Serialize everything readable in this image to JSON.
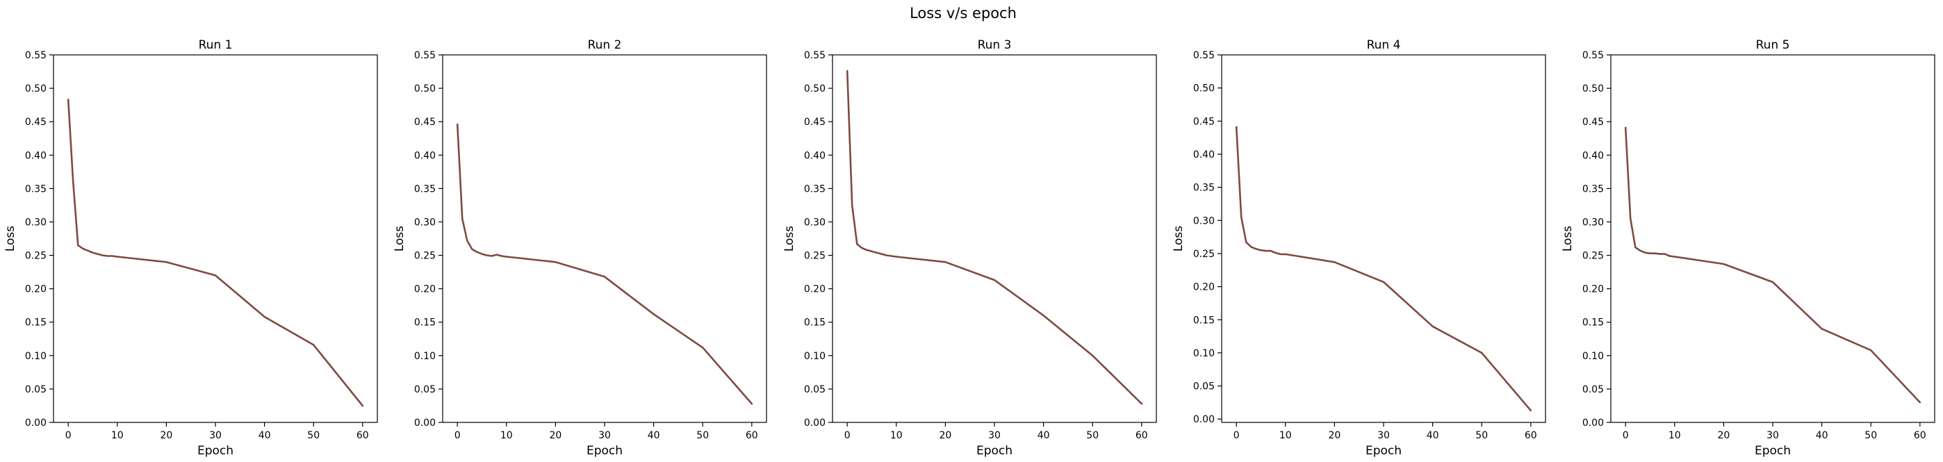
{
  "figure": {
    "suptitle": "Loss v/s epoch",
    "line_color": "#7f4a40"
  },
  "chart_data": [
    {
      "type": "line",
      "title": "Run 1",
      "xlabel": "Epoch",
      "ylabel": "Loss",
      "xlim": [
        -3,
        63
      ],
      "ylim": [
        0.0,
        0.55
      ],
      "x_ticks": [
        0,
        10,
        20,
        30,
        40,
        50,
        60
      ],
      "y_ticks": [
        0.0,
        0.05,
        0.1,
        0.15,
        0.2,
        0.25,
        0.3,
        0.35,
        0.4,
        0.45,
        0.5,
        0.55
      ],
      "grid": false,
      "x": [
        0,
        1,
        2,
        3,
        4,
        5,
        6,
        7,
        8,
        9,
        10,
        20,
        30,
        40,
        50,
        60
      ],
      "y": [
        0.483,
        0.36,
        0.265,
        0.26,
        0.257,
        0.254,
        0.252,
        0.25,
        0.249,
        0.249,
        0.248,
        0.24,
        0.22,
        0.158,
        0.116,
        0.025
      ]
    },
    {
      "type": "line",
      "title": "Run 2",
      "xlabel": "Epoch",
      "ylabel": "Loss",
      "xlim": [
        -3,
        63
      ],
      "ylim": [
        0.0,
        0.55
      ],
      "x_ticks": [
        0,
        10,
        20,
        30,
        40,
        50,
        60
      ],
      "y_ticks": [
        0.0,
        0.05,
        0.1,
        0.15,
        0.2,
        0.25,
        0.3,
        0.35,
        0.4,
        0.45,
        0.5,
        0.55
      ],
      "grid": false,
      "x": [
        0,
        1,
        2,
        3,
        4,
        5,
        6,
        7,
        8,
        9,
        10,
        20,
        30,
        40,
        50,
        60
      ],
      "y": [
        0.446,
        0.305,
        0.272,
        0.259,
        0.255,
        0.252,
        0.25,
        0.249,
        0.251,
        0.249,
        0.248,
        0.24,
        0.218,
        0.162,
        0.112,
        0.028
      ]
    },
    {
      "type": "line",
      "title": "Run 3",
      "xlabel": "Epoch",
      "ylabel": "Loss",
      "xlim": [
        -3,
        63
      ],
      "ylim": [
        0.0,
        0.55
      ],
      "x_ticks": [
        0,
        10,
        20,
        30,
        40,
        50,
        60
      ],
      "y_ticks": [
        0.0,
        0.05,
        0.1,
        0.15,
        0.2,
        0.25,
        0.3,
        0.35,
        0.4,
        0.45,
        0.5,
        0.55
      ],
      "grid": false,
      "x": [
        0,
        1,
        2,
        3,
        4,
        5,
        6,
        7,
        8,
        9,
        10,
        20,
        30,
        40,
        50,
        60
      ],
      "y": [
        0.526,
        0.325,
        0.267,
        0.261,
        0.258,
        0.256,
        0.254,
        0.252,
        0.25,
        0.249,
        0.248,
        0.24,
        0.213,
        0.16,
        0.1,
        0.028
      ]
    },
    {
      "type": "line",
      "title": "Run 4",
      "xlabel": "Epoch",
      "ylabel": "Loss",
      "xlim": [
        -3,
        63
      ],
      "ylim": [
        -0.005,
        0.55
      ],
      "x_ticks": [
        0,
        10,
        20,
        30,
        40,
        50,
        60
      ],
      "y_ticks": [
        0.0,
        0.05,
        0.1,
        0.15,
        0.2,
        0.25,
        0.3,
        0.35,
        0.4,
        0.45,
        0.5,
        0.55
      ],
      "grid": false,
      "x": [
        0,
        1,
        2,
        3,
        4,
        5,
        6,
        7,
        8,
        9,
        10,
        20,
        30,
        40,
        50,
        60
      ],
      "y": [
        0.441,
        0.305,
        0.267,
        0.26,
        0.257,
        0.255,
        0.254,
        0.254,
        0.251,
        0.249,
        0.249,
        0.237,
        0.207,
        0.14,
        0.1,
        0.013
      ]
    },
    {
      "type": "line",
      "title": "Run 5",
      "xlabel": "Epoch",
      "ylabel": "Loss",
      "xlim": [
        -3,
        63
      ],
      "ylim": [
        0.0,
        0.55
      ],
      "x_ticks": [
        0,
        10,
        20,
        30,
        40,
        50,
        60
      ],
      "y_ticks": [
        0.0,
        0.05,
        0.1,
        0.15,
        0.2,
        0.25,
        0.3,
        0.35,
        0.4,
        0.45,
        0.5,
        0.55
      ],
      "grid": false,
      "x": [
        0,
        1,
        2,
        3,
        4,
        5,
        6,
        7,
        8,
        9,
        10,
        20,
        30,
        40,
        50,
        60
      ],
      "y": [
        0.441,
        0.305,
        0.262,
        0.257,
        0.254,
        0.253,
        0.253,
        0.252,
        0.252,
        0.249,
        0.248,
        0.237,
        0.21,
        0.14,
        0.108,
        0.03
      ]
    }
  ]
}
